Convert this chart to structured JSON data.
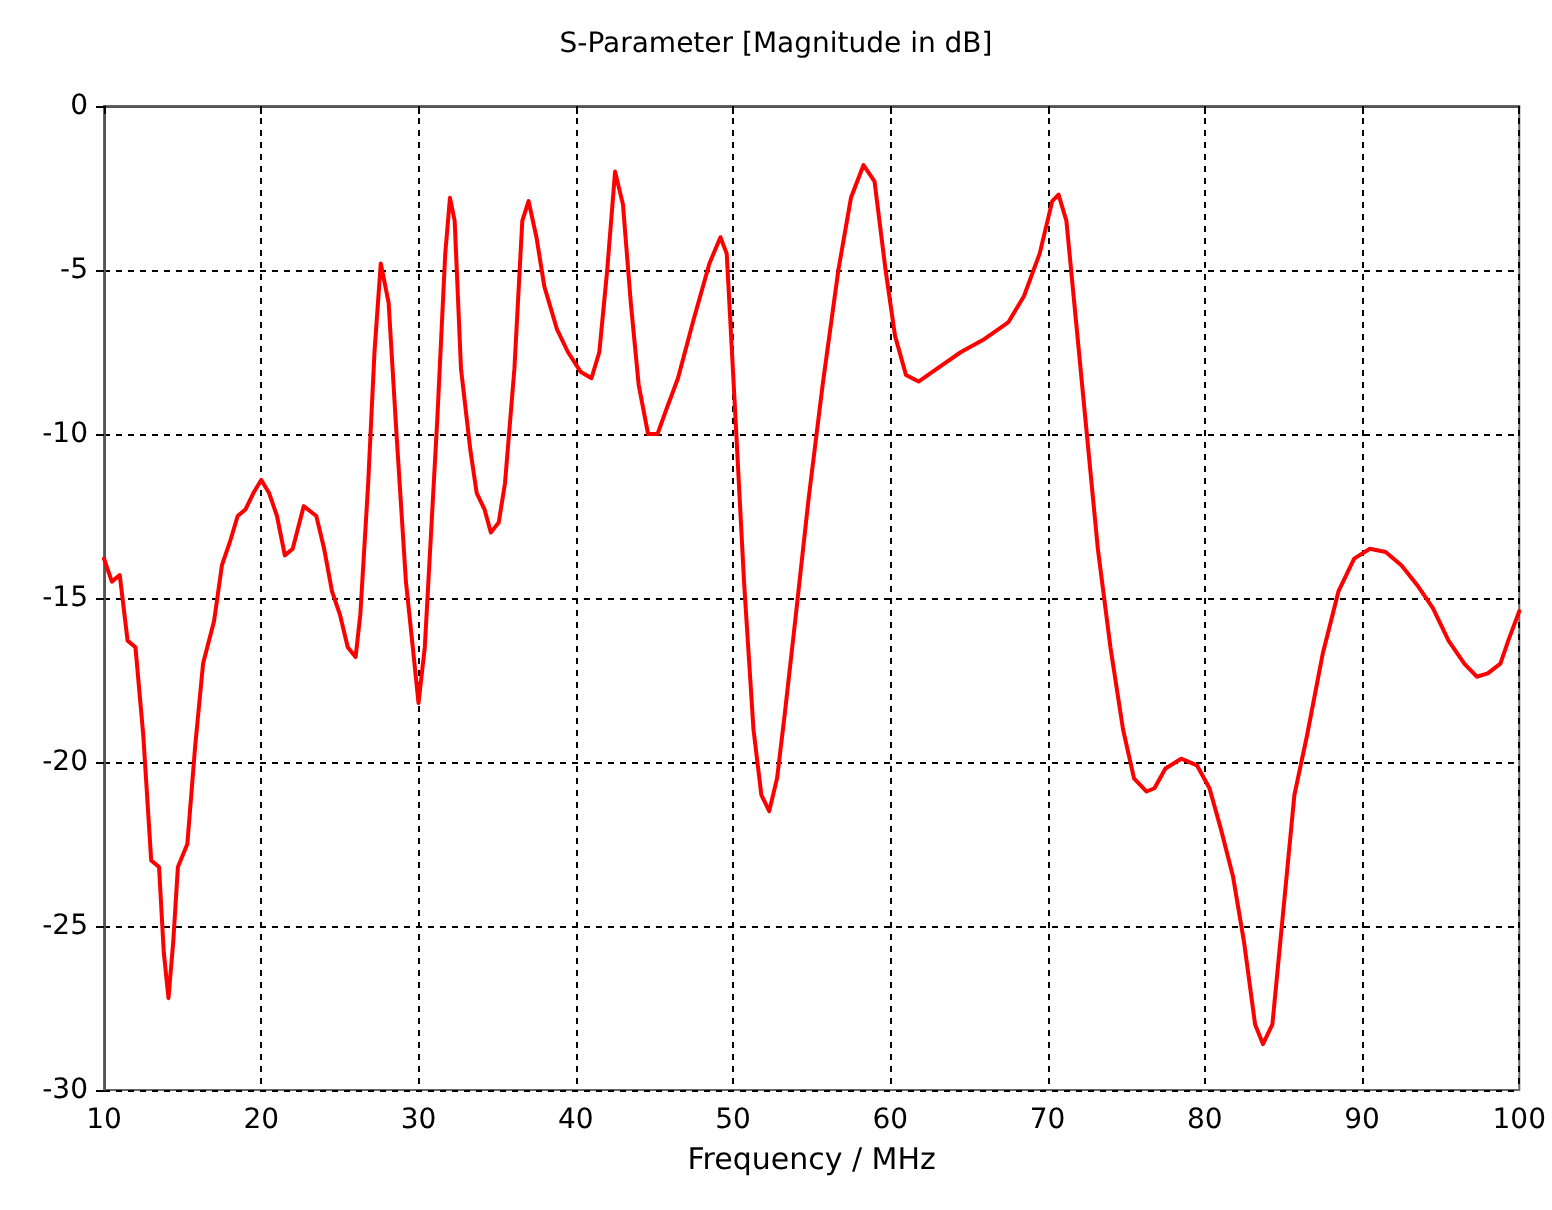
{
  "chart_data": {
    "type": "line",
    "title": "S-Parameter [Magnitude in dB]",
    "xlabel": "Frequency / MHz",
    "xlim": [
      10,
      100
    ],
    "xticks": [
      10,
      20,
      30,
      40,
      50,
      60,
      70,
      80,
      90,
      100
    ],
    "ylim": [
      -30,
      0
    ],
    "yticks": [
      -30,
      -25,
      -20,
      -15,
      -10,
      -5,
      0
    ],
    "grid": true,
    "line_style": "solid",
    "marker": "none",
    "series": [
      {
        "color": "#ff0000",
        "x": [
          10,
          10.5,
          11,
          11.5,
          12,
          12.5,
          13,
          13.5,
          13.8,
          14.1,
          14.4,
          14.7,
          15.3,
          15.8,
          16.3,
          17,
          17.5,
          18,
          18.5,
          19,
          19.5,
          20,
          20.5,
          21,
          21.5,
          22,
          22.7,
          23.5,
          24,
          24.5,
          25,
          25.5,
          26,
          26.3,
          26.8,
          27.2,
          27.6,
          28.1,
          28.6,
          29.2,
          29.7,
          30,
          30.4,
          30.8,
          31.2,
          31.7,
          32,
          32.3,
          32.7,
          33.3,
          33.7,
          34.2,
          34.6,
          35.1,
          35.5,
          36.1,
          36.6,
          37,
          37.5,
          38,
          38.8,
          39.5,
          40.3,
          41,
          41.5,
          42,
          42.5,
          43,
          43.5,
          44,
          44.6,
          45.2,
          45.8,
          46.5,
          47.5,
          48.5,
          49.2,
          49.6,
          50.1,
          50.7,
          51.3,
          51.8,
          52.3,
          52.8,
          53.3,
          54,
          54.8,
          55.7,
          56.7,
          57.5,
          58.3,
          59,
          59.7,
          60.3,
          61,
          61.8,
          63,
          64.5,
          66,
          67.5,
          68.5,
          69.5,
          70.3,
          70.7,
          71.2,
          71.8,
          72.5,
          73.2,
          74,
          74.8,
          75.5,
          76.3,
          76.8,
          77.5,
          78.5,
          79.5,
          80.3,
          81,
          81.8,
          82.5,
          83.2,
          83.7,
          84.3,
          85,
          85.7,
          86.5,
          87.5,
          88.5,
          89.5,
          90.5,
          91.5,
          92.5,
          93.5,
          94.5,
          95.5,
          96.5,
          97.3,
          98,
          98.8,
          99.3,
          100
        ],
        "values": [
          -13.8,
          -14.5,
          -14.3,
          -16.3,
          -16.5,
          -19.2,
          -23,
          -23.2,
          -25.8,
          -27.2,
          -25.5,
          -23.2,
          -22.5,
          -19.5,
          -17,
          -15.7,
          -14,
          -13.3,
          -12.5,
          -12.3,
          -11.8,
          -11.4,
          -11.8,
          -12.5,
          -13.7,
          -13.5,
          -12.2,
          -12.5,
          -13.5,
          -14.8,
          -15.5,
          -16.5,
          -16.8,
          -15.5,
          -11.5,
          -7.5,
          -4.8,
          -6,
          -10,
          -14.5,
          -16.8,
          -18.2,
          -16.5,
          -13,
          -9.5,
          -4.5,
          -2.8,
          -3.5,
          -8,
          -10.5,
          -11.8,
          -12.3,
          -13,
          -12.7,
          -11.5,
          -8,
          -3.5,
          -2.9,
          -4,
          -5.5,
          -6.8,
          -7.5,
          -8.1,
          -8.3,
          -7.5,
          -5,
          -2,
          -3,
          -6,
          -8.5,
          -10,
          -10,
          -9.2,
          -8.3,
          -6.5,
          -4.8,
          -4,
          -4.5,
          -9,
          -14.5,
          -19,
          -21,
          -21.5,
          -20.5,
          -18.5,
          -15.5,
          -12,
          -8.5,
          -5,
          -2.8,
          -1.8,
          -2.3,
          -5,
          -7,
          -8.2,
          -8.4,
          -8,
          -7.5,
          -7.1,
          -6.6,
          -5.8,
          -4.5,
          -2.9,
          -2.7,
          -3.5,
          -6.5,
          -10,
          -13.5,
          -16.5,
          -19,
          -20.5,
          -20.9,
          -20.8,
          -20.2,
          -19.9,
          -20.1,
          -20.8,
          -22,
          -23.5,
          -25.5,
          -28,
          -28.6,
          -28,
          -24.5,
          -21,
          -19.2,
          -16.7,
          -14.8,
          -13.8,
          -13.5,
          -13.6,
          -14,
          -14.6,
          -15.3,
          -16.3,
          -17,
          -17.4,
          -17.3,
          -17,
          -16.3,
          -15.4
        ]
      }
    ]
  }
}
